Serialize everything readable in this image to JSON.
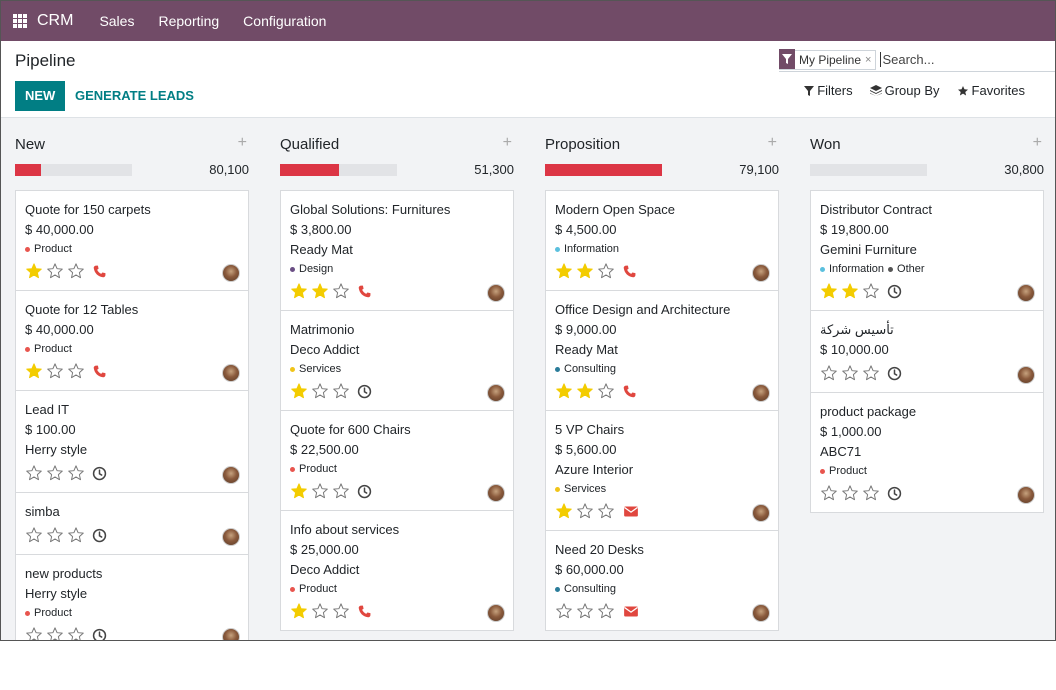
{
  "navbar": {
    "app_name": "CRM",
    "menus": [
      "Sales",
      "Reporting",
      "Configuration"
    ]
  },
  "control": {
    "title": "Pipeline",
    "new_label": "NEW",
    "generate_label": "GENERATE LEADS",
    "facet_label": "My Pipeline",
    "facet_close": "×",
    "search_placeholder": "Search...",
    "filters_label": "Filters",
    "groupby_label": "Group By",
    "favorites_label": "Favorites"
  },
  "colors": {
    "navbar": "#714B67",
    "accent": "#017E84",
    "star_on": "#f3cc00",
    "phone": "#e0473f",
    "progress_red": "#dc3545",
    "tag_product": "#e8554e",
    "tag_information": "#5bc0de",
    "tag_design": "#6a4e84",
    "tag_services": "#f0c419",
    "tag_consulting": "#2a7c9a",
    "tag_other": "#555555"
  },
  "columns": [
    {
      "title": "New",
      "total": "80,100",
      "progress": 0.22,
      "cards": [
        {
          "name": "Quote for 150 carpets",
          "amount": "$ 40,000.00",
          "company": "",
          "tags": [
            {
              "label": "Product",
              "color": "#e8554e"
            }
          ],
          "stars": 1,
          "activity": "phone"
        },
        {
          "name": "Quote for 12 Tables",
          "amount": "$ 40,000.00",
          "company": "",
          "tags": [
            {
              "label": "Product",
              "color": "#e8554e"
            }
          ],
          "stars": 1,
          "activity": "phone"
        },
        {
          "name": "Lead IT",
          "amount": "$ 100.00",
          "company": "Herry style",
          "tags": [],
          "stars": 0,
          "activity": "clock"
        },
        {
          "name": "simba",
          "amount": "",
          "company": "",
          "tags": [],
          "stars": 0,
          "activity": "clock"
        },
        {
          "name": "new products",
          "amount": "",
          "company": "Herry style",
          "tags": [
            {
              "label": "Product",
              "color": "#e8554e"
            }
          ],
          "stars": 0,
          "activity": "clock"
        }
      ]
    },
    {
      "title": "Qualified",
      "total": "51,300",
      "progress": 0.5,
      "cards": [
        {
          "name": "Global Solutions: Furnitures",
          "amount": "$ 3,800.00",
          "company": "Ready Mat",
          "tags": [
            {
              "label": "Design",
              "color": "#6a4e84"
            }
          ],
          "stars": 2,
          "activity": "phone"
        },
        {
          "name": "Matrimonio",
          "amount": "",
          "company": "Deco Addict",
          "tags": [
            {
              "label": "Services",
              "color": "#f0c419"
            }
          ],
          "stars": 1,
          "activity": "clock"
        },
        {
          "name": "Quote for 600 Chairs",
          "amount": "$ 22,500.00",
          "company": "",
          "tags": [
            {
              "label": "Product",
              "color": "#e8554e"
            }
          ],
          "stars": 1,
          "activity": "clock"
        },
        {
          "name": "Info about services",
          "amount": "$ 25,000.00",
          "company": "Deco Addict",
          "tags": [
            {
              "label": "Product",
              "color": "#e8554e"
            }
          ],
          "stars": 1,
          "activity": "phone"
        }
      ]
    },
    {
      "title": "Proposition",
      "total": "79,100",
      "progress": 1.0,
      "cards": [
        {
          "name": "Modern Open Space",
          "amount": "$ 4,500.00",
          "company": "",
          "tags": [
            {
              "label": "Information",
              "color": "#5bc0de"
            }
          ],
          "stars": 2,
          "activity": "phone"
        },
        {
          "name": "Office Design and Architecture",
          "amount": "$ 9,000.00",
          "company": "Ready Mat",
          "tags": [
            {
              "label": "Consulting",
              "color": "#2a7c9a"
            }
          ],
          "stars": 2,
          "activity": "phone"
        },
        {
          "name": "5 VP Chairs",
          "amount": "$ 5,600.00",
          "company": "Azure Interior",
          "tags": [
            {
              "label": "Services",
              "color": "#f0c419"
            }
          ],
          "stars": 1,
          "activity": "mail"
        },
        {
          "name": "Need 20 Desks",
          "amount": "$ 60,000.00",
          "company": "",
          "tags": [
            {
              "label": "Consulting",
              "color": "#2a7c9a"
            }
          ],
          "stars": 0,
          "activity": "mail"
        }
      ]
    },
    {
      "title": "Won",
      "total": "30,800",
      "progress": 0,
      "cards": [
        {
          "name": "Distributor Contract",
          "amount": "$ 19,800.00",
          "company": "Gemini Furniture",
          "tags": [
            {
              "label": "Information",
              "color": "#5bc0de"
            },
            {
              "label": "Other",
              "color": "#555555"
            }
          ],
          "stars": 2,
          "activity": "clock"
        },
        {
          "name": "تأسيس شركة",
          "amount": "$ 10,000.00",
          "company": "",
          "tags": [],
          "stars": 0,
          "activity": "clock"
        },
        {
          "name": "product package",
          "amount": "$ 1,000.00",
          "company": "ABC71",
          "tags": [
            {
              "label": "Product",
              "color": "#e8554e"
            }
          ],
          "stars": 0,
          "activity": "clock"
        }
      ]
    }
  ]
}
